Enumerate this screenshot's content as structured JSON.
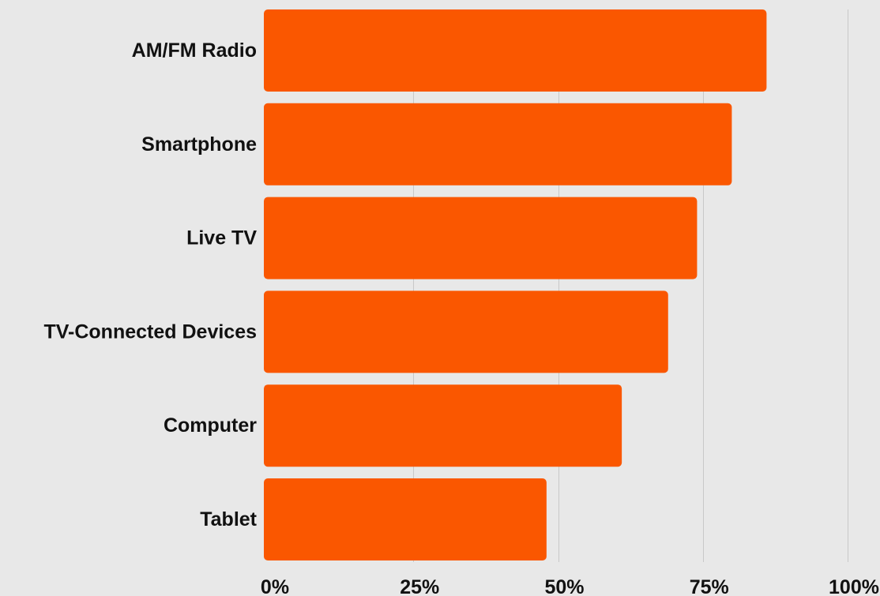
{
  "chart_data": {
    "type": "bar",
    "orientation": "horizontal",
    "categories": [
      "AM/FM Radio",
      "Smartphone",
      "Live TV",
      "TV-Connected Devices",
      "Computer",
      "Tablet"
    ],
    "values": [
      86,
      80,
      74,
      69,
      61,
      48
    ],
    "value_unit": "%",
    "xlim": [
      0,
      100
    ],
    "x_ticks": [
      0,
      25,
      50,
      75,
      100
    ],
    "x_tick_labels": [
      "0%",
      "25%",
      "50%",
      "75%",
      "100%"
    ],
    "grid": "vertical",
    "bar_color": "#fa5700",
    "gridline_color": "#c8c8c8",
    "background_color": "#e8e8e8",
    "label_color": "#111111",
    "title": "",
    "xlabel": "",
    "ylabel": ""
  }
}
